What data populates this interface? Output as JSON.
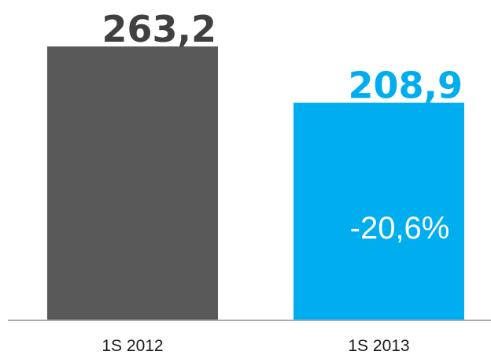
{
  "chart_data": {
    "type": "bar",
    "categories": [
      "1S 2012",
      "1S 2013"
    ],
    "values": [
      263.2,
      208.9
    ],
    "value_labels": [
      "263,2",
      "208,9"
    ],
    "change_label": "-20,6%",
    "colors": [
      "#595959",
      "#00adef"
    ],
    "value_label_colors": [
      "#404040",
      "#00adef"
    ],
    "axis_color": "#8c8c8c",
    "ylim": [
      0,
      263.2
    ],
    "grid": false,
    "legend": "none"
  }
}
